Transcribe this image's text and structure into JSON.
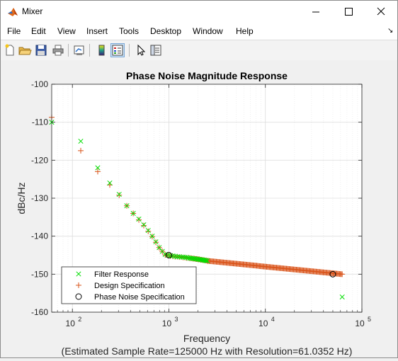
{
  "window": {
    "title": "Mixer",
    "minimize_icon": "minimize-icon",
    "maximize_icon": "maximize-icon",
    "close_icon": "close-icon"
  },
  "menu": [
    "File",
    "Edit",
    "View",
    "Insert",
    "Tools",
    "Desktop",
    "Window",
    "Help"
  ],
  "toolbar": [
    "new-figure-icon",
    "open-file-icon",
    "save-icon",
    "print-icon",
    "link-plot-icon",
    "colorbar-icon",
    "legend-icon",
    "pointer-icon",
    "property-inspector-icon"
  ],
  "chart_data": {
    "type": "scatter",
    "title": "Phase Noise Magnitude Response",
    "xlabel": "Frequency",
    "subxlabel": "(Estimated Sample Rate=125000 Hz with Resolution=61.0352 Hz)",
    "ylabel": "dBc/Hz",
    "xscale": "log",
    "xlim": [
      61.0352,
      100000
    ],
    "ylim": [
      -160,
      -100
    ],
    "xticks": [
      100,
      1000,
      10000,
      100000
    ],
    "xtick_labels": [
      {
        "base": "10",
        "exp": "2"
      },
      {
        "base": "10",
        "exp": "3"
      },
      {
        "base": "10",
        "exp": "4"
      },
      {
        "base": "10",
        "exp": "5"
      }
    ],
    "yticks": [
      -160,
      -150,
      -140,
      -130,
      -120,
      -110,
      -100
    ],
    "ytick_labels": [
      "-160",
      "-150",
      "-140",
      "-130",
      "-120",
      "-110",
      "-100"
    ],
    "grid": true,
    "legend_position": "bottom-left",
    "series": [
      {
        "name": "Filter Response",
        "marker": "x",
        "color": "#00dd00",
        "x": [
          61.0352,
          122.07,
          183.105,
          244.14,
          305.176,
          366.211,
          427.246,
          488.281,
          549.316,
          610.352,
          671.387,
          732.422,
          793.457,
          854.492,
          915.527,
          976.563,
          1037.6,
          1098.63,
          1159.67,
          1220.7,
          1281.74,
          1342.77,
          1403.81,
          1464.84,
          1525.88,
          1586.91,
          1647.95,
          1708.98,
          1770.02,
          1831.05,
          1892.09,
          1953.13,
          2014.16,
          2075.2,
          2136.23,
          2197.27,
          2258.3,
          2319.34,
          2380.37,
          2441.41,
          2502.44,
          62500
        ],
        "y": [
          -110,
          -115,
          -122,
          -126,
          -129,
          -132,
          -134,
          -135.5,
          -137,
          -138.5,
          -140,
          -141.5,
          -143,
          -144,
          -144.8,
          -145,
          -145.1,
          -145.2,
          -145.3,
          -145.4,
          -145.4,
          -145.5,
          -145.5,
          -145.6,
          -145.6,
          -145.7,
          -145.8,
          -145.8,
          -145.9,
          -145.9,
          -146,
          -146,
          -146.1,
          -146.1,
          -146.2,
          -146.2,
          -146.3,
          -146.3,
          -146.4,
          -146.4,
          -146.5,
          -156
        ]
      },
      {
        "name": "Design Specification",
        "marker": "+",
        "color": "#d95319",
        "x": [
          61.0352,
          122.07,
          183.105,
          244.14,
          305.176,
          366.211,
          427.246,
          488.281,
          549.316,
          610.352,
          671.387,
          732.422,
          793.457,
          854.492,
          915.527,
          976.563,
          1037.6,
          1098.63,
          1159.67,
          1220.7,
          1281.74,
          1342.77,
          1403.81,
          1464.84,
          1525.88,
          1586.91,
          1647.95,
          1708.98,
          1770.02,
          1831.05,
          1892.09,
          1953.13,
          2014.16,
          2075.2,
          2136.23,
          2197.27,
          2258.3,
          2319.34,
          2380.37,
          2441.41,
          2502.44
        ],
        "y": [
          -108.7,
          -117.5,
          -123,
          -126.5,
          -129.2,
          -132,
          -134,
          -135.7,
          -137.2,
          -138.7,
          -140.1,
          -141.6,
          -143,
          -144,
          -144.9,
          -145.1,
          -145.2,
          -145.3,
          -145.4,
          -145.4,
          -145.5,
          -145.5,
          -145.6,
          -145.6,
          -145.7,
          -145.7,
          -145.8,
          -145.8,
          -145.9,
          -145.9,
          -146,
          -146,
          -146.1,
          -146.1,
          -146.2,
          -146.2,
          -146.3,
          -146.3,
          -146.4,
          -146.4,
          -146.5
        ],
        "dense_x_range": [
          2500,
          62500
        ],
        "dense_y_range": [
          -146.5,
          -150
        ]
      },
      {
        "name": "Phase Noise Specification",
        "marker": "o",
        "color": "#000000",
        "x": [
          1000,
          50000
        ],
        "y": [
          -145,
          -150
        ]
      }
    ]
  }
}
